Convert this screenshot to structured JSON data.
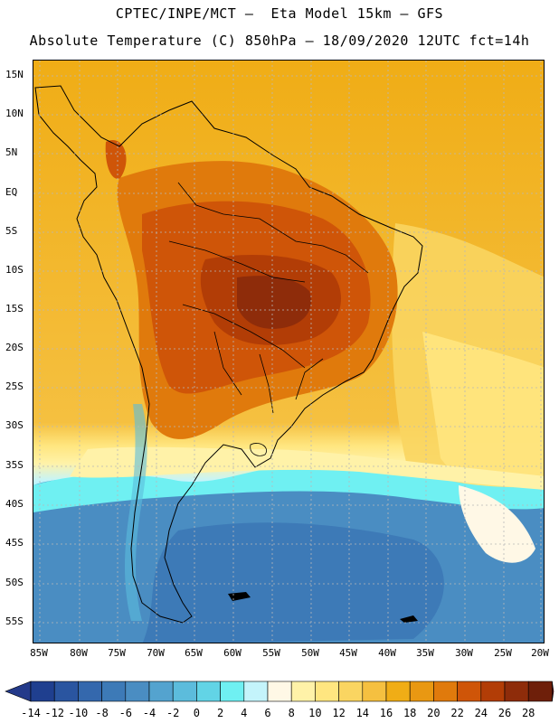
{
  "header": {
    "line1": "CPTEC/INPE/MCT –  Eta Model 15km – GFS",
    "line2": "Absolute Temperature (C) 850hPa – 18/09/2020 12UTC fct=14h"
  },
  "map": {
    "lat_labels": [
      "15N",
      "10N",
      "5N",
      "EQ",
      "5S",
      "10S",
      "15S",
      "20S",
      "25S",
      "30S",
      "35S",
      "40S",
      "45S",
      "50S",
      "55S"
    ],
    "lon_labels": [
      "85W",
      "80W",
      "75W",
      "70W",
      "65W",
      "60W",
      "55W",
      "50W",
      "45W",
      "40W",
      "35W",
      "30W",
      "25W",
      "20W"
    ]
  },
  "colorbar": {
    "labels": [
      "-14",
      "-12",
      "-10",
      "-8",
      "-6",
      "-4",
      "-2",
      "0",
      "2",
      "4",
      "6",
      "8",
      "10",
      "12",
      "14",
      "16",
      "18",
      "20",
      "22",
      "24",
      "26",
      "28"
    ],
    "colors": [
      "#1f3f8f",
      "#2a55a0",
      "#3468ad",
      "#3d7ab7",
      "#4a8dc2",
      "#54a3cf",
      "#5cbcdc",
      "#62d4e6",
      "#6ff0f2",
      "#c4f4fb",
      "#fff8e6",
      "#fff2a8",
      "#ffe680",
      "#fad561",
      "#f5c040",
      "#f0ad16",
      "#e99812",
      "#e07a0c",
      "#cf5508",
      "#b23d06",
      "#8e2c0a",
      "#6e1f0a"
    ],
    "underflow_color": "#243a8a",
    "overflow_color": "#6a0f1a"
  }
}
